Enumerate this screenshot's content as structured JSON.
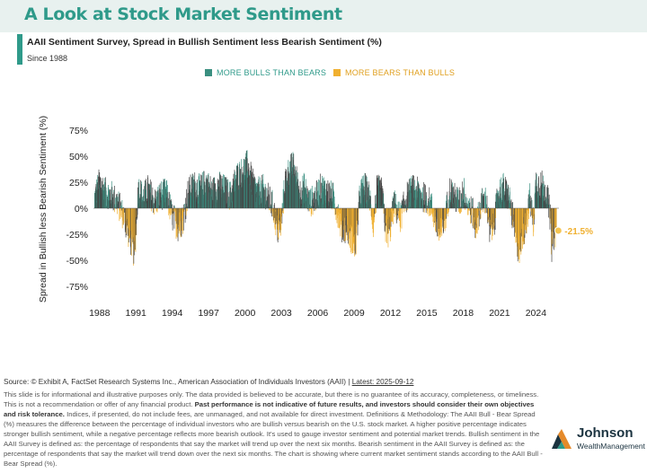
{
  "header": {
    "title": "A Look at Stock Market Sentiment",
    "subtitle": "AAII Sentiment Survey, Spread in Bullish Sentiment less Bearish Sentiment (%)",
    "since": "Since 1988"
  },
  "legend": {
    "bull_label": "MORE BULLS THAN BEARS",
    "bear_label": "MORE BEARS THAN BULLS"
  },
  "colors": {
    "accent": "#2f9a8a",
    "bull": "#3a8f80",
    "bull_dark": "#444444",
    "bear": "#f0b030"
  },
  "chart_data": {
    "type": "bar",
    "ylabel": "Spread in Bullish less Bearish Sentiment (%)",
    "ylim": [
      -75,
      75
    ],
    "yticks": [
      75,
      50,
      25,
      0,
      -25,
      -50,
      -75
    ],
    "ytick_labels": [
      "75%",
      "50%",
      "25%",
      "0%",
      "-25%",
      "-50%",
      "-75%"
    ],
    "xlim": [
      1987.5,
      2025.9
    ],
    "xticks": [
      1988,
      1991,
      1994,
      1997,
      2000,
      2003,
      2006,
      2009,
      2012,
      2015,
      2018,
      2021,
      2024
    ],
    "xtick_labels": [
      "1988",
      "1991",
      "1994",
      "1997",
      "2000",
      "2003",
      "2006",
      "2009",
      "2012",
      "2015",
      "2018",
      "2021",
      "2024"
    ],
    "anchors": [
      [
        1987.6,
        10
      ],
      [
        1988.0,
        25
      ],
      [
        1988.5,
        15
      ],
      [
        1989.0,
        12
      ],
      [
        1989.5,
        5
      ],
      [
        1990.0,
        -8
      ],
      [
        1990.5,
        -28
      ],
      [
        1990.9,
        -45
      ],
      [
        1991.2,
        20
      ],
      [
        1991.6,
        10
      ],
      [
        1992.0,
        18
      ],
      [
        1992.6,
        5
      ],
      [
        1993.0,
        12
      ],
      [
        1993.5,
        15
      ],
      [
        1994.0,
        -8
      ],
      [
        1994.5,
        -18
      ],
      [
        1994.9,
        -10
      ],
      [
        1995.3,
        15
      ],
      [
        1995.8,
        22
      ],
      [
        1996.3,
        18
      ],
      [
        1996.8,
        25
      ],
      [
        1997.3,
        15
      ],
      [
        1997.8,
        22
      ],
      [
        1998.3,
        18
      ],
      [
        1998.8,
        12
      ],
      [
        1999.3,
        30
      ],
      [
        1999.8,
        35
      ],
      [
        2000.2,
        42
      ],
      [
        2000.6,
        25
      ],
      [
        2001.0,
        15
      ],
      [
        2001.5,
        18
      ],
      [
        2001.9,
        10
      ],
      [
        2002.3,
        2
      ],
      [
        2002.7,
        -22
      ],
      [
        2003.0,
        -15
      ],
      [
        2003.3,
        25
      ],
      [
        2003.7,
        38
      ],
      [
        2004.0,
        40
      ],
      [
        2004.5,
        15
      ],
      [
        2004.9,
        20
      ],
      [
        2005.3,
        5
      ],
      [
        2005.8,
        10
      ],
      [
        2006.3,
        20
      ],
      [
        2006.8,
        15
      ],
      [
        2007.3,
        10
      ],
      [
        2007.7,
        -5
      ],
      [
        2008.0,
        -20
      ],
      [
        2008.4,
        -18
      ],
      [
        2008.8,
        -30
      ],
      [
        2009.1,
        -40
      ],
      [
        2009.5,
        15
      ],
      [
        2009.9,
        20
      ],
      [
        2010.3,
        10
      ],
      [
        2010.6,
        -15
      ],
      [
        2010.9,
        18
      ],
      [
        2011.3,
        15
      ],
      [
        2011.6,
        -20
      ],
      [
        2011.9,
        -25
      ],
      [
        2012.3,
        5
      ],
      [
        2012.8,
        -10
      ],
      [
        2013.3,
        10
      ],
      [
        2013.8,
        18
      ],
      [
        2014.3,
        15
      ],
      [
        2014.8,
        10
      ],
      [
        2015.3,
        5
      ],
      [
        2015.8,
        -15
      ],
      [
        2016.1,
        -28
      ],
      [
        2016.5,
        -10
      ],
      [
        2016.9,
        18
      ],
      [
        2017.3,
        10
      ],
      [
        2017.8,
        5
      ],
      [
        2018.0,
        20
      ],
      [
        2018.3,
        5
      ],
      [
        2018.8,
        -5
      ],
      [
        2019.0,
        -20
      ],
      [
        2019.5,
        5
      ],
      [
        2019.9,
        8
      ],
      [
        2020.2,
        -25
      ],
      [
        2020.6,
        -10
      ],
      [
        2020.9,
        15
      ],
      [
        2021.3,
        20
      ],
      [
        2021.8,
        10
      ],
      [
        2022.1,
        -10
      ],
      [
        2022.4,
        -35
      ],
      [
        2022.7,
        -40
      ],
      [
        2022.9,
        -25
      ],
      [
        2023.2,
        -15
      ],
      [
        2023.5,
        10
      ],
      [
        2023.8,
        -15
      ],
      [
        2024.0,
        25
      ],
      [
        2024.5,
        22
      ],
      [
        2024.9,
        15
      ],
      [
        2025.2,
        -10
      ],
      [
        2025.3,
        -38
      ],
      [
        2025.5,
        -25
      ],
      [
        2025.7,
        -21.5
      ]
    ],
    "bar_step_years": 0.0192,
    "latest_value": -21.5,
    "latest_label": "-21.5%"
  },
  "footer": {
    "source": "Source: © Exhibit A, FactSet Research Systems Inc., American Association of Individuals Investors (AAII)",
    "separator": " | ",
    "latest": "Latest: 2025-09-12",
    "p1": "This slide is for informational and illustrative purposes only. The data provided is believed to be accurate, but there is no guarantee of its accuracy, completeness, or timeliness. This is not a recommendation or offer of any financial product.",
    "bold": "Past performance is not indicative of future results, and investors should consider their own objectives and risk tolerance.",
    "p2": "Indices, if presented, do not include fees, are unmanaged, and not available for direct investment. Definitions & Methodology: The AAII Bull - Bear Spread (%) measures the difference between the percentage of individual investors who are bullish versus bearish on the U.S. stock market. A higher positive percentage indicates stronger bullish sentiment, while a negative percentage reflects more bearish outlook. It's used to gauge investor sentiment and potential market trends. Bullish sentiment in the AAII Survey is defined as: the percentage of respondents that say the market will trend up over the next six months. Bearish sentiment in the AAII Survey is defined as: the percentage of respondents that say the market will trend down over the next six months. The chart is showing where current market sentiment stands according to the AAII Bull - Bear Spread (%)."
  },
  "logo": {
    "name": "Johnson",
    "sub": "WealthManagement"
  }
}
